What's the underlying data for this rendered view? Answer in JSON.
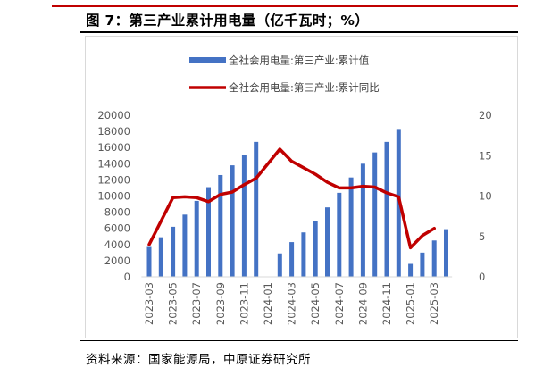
{
  "figure": {
    "title": "图 7：第三产业累计用电量（亿千瓦时；%）",
    "source": "资料来源：国家能源局，中原证券研究所"
  },
  "colors": {
    "bar": "#4472c4",
    "line": "#c00000",
    "axis": "#d9d9d9",
    "tick_text": "#595959"
  },
  "chart_data": {
    "type": "bar",
    "title": "",
    "xlabel": "",
    "ylabel": "",
    "legend_position": "top-center",
    "grid": false,
    "categories": [
      "2023-03",
      "2023-04",
      "2023-05",
      "2023-06",
      "2023-07",
      "2023-08",
      "2023-09",
      "2023-10",
      "2023-11",
      "2023-12",
      "2024-01",
      "2024-02",
      "2024-03",
      "2024-04",
      "2024-05",
      "2024-06",
      "2024-07",
      "2024-08",
      "2024-09",
      "2024-10",
      "2024-11",
      "2024-12",
      "2025-01",
      "2025-02",
      "2025-03",
      "2025-04"
    ],
    "x_tick_labels": [
      "2023-03",
      "2023-05",
      "2023-07",
      "2023-09",
      "2023-11",
      "2024-01",
      "2024-03",
      "2024-05",
      "2024-07",
      "2024-09",
      "2024-11",
      "2025-01",
      "2025-03"
    ],
    "ylim_left": [
      0,
      20000
    ],
    "yticks_left": [
      "0",
      "2000",
      "4000",
      "6000",
      "8000",
      "10000",
      "12000",
      "14000",
      "16000",
      "18000",
      "20000"
    ],
    "ylim_right": [
      0,
      20
    ],
    "yticks_right": [
      "0",
      "5",
      "10",
      "15",
      "20"
    ],
    "series": [
      {
        "name": "全社会用电量:第三产业:累计值",
        "type": "bar",
        "axis": "left",
        "values": [
          3700,
          4900,
          6200,
          7700,
          9400,
          11100,
          12600,
          13800,
          15100,
          16700,
          null,
          2900,
          4300,
          5500,
          6900,
          8600,
          10400,
          12300,
          14000,
          15400,
          16700,
          18300,
          1600,
          3000,
          4500,
          5900
        ]
      },
      {
        "name": "全社会用电量:第三产业:累计同比",
        "type": "line",
        "axis": "right",
        "values": [
          4.0,
          6.9,
          9.8,
          9.9,
          9.8,
          9.3,
          10.2,
          10.5,
          11.4,
          12.2,
          null,
          15.8,
          14.3,
          13.5,
          12.7,
          11.7,
          11.0,
          11.0,
          11.2,
          11.1,
          10.4,
          9.9,
          3.6,
          5.1,
          6.0,
          null
        ]
      }
    ]
  }
}
